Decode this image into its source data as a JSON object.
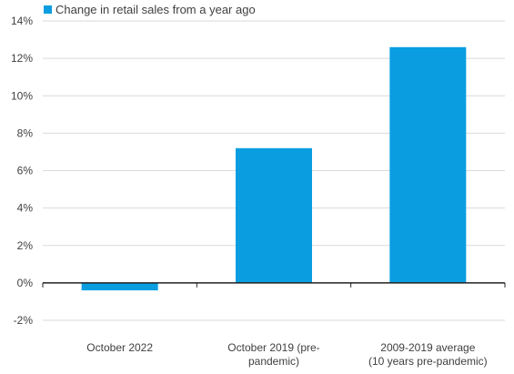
{
  "chart_data": {
    "type": "bar",
    "categories": [
      [
        "October 2022"
      ],
      [
        "October 2019 (pre-",
        "pandemic)"
      ],
      [
        "2009-2019 average",
        "(10 years pre-pandemic)"
      ]
    ],
    "series": [
      {
        "name": "Change in retail sales from a year ago",
        "values": [
          -0.4,
          7.2,
          12.6
        ]
      }
    ],
    "ylim": [
      -2,
      14
    ],
    "ytick_values": [
      -2,
      0,
      2,
      4,
      6,
      8,
      10,
      12,
      14
    ],
    "ytick_labels": [
      "-2%",
      "0%",
      "2%",
      "4%",
      "6%",
      "8%",
      "10%",
      "12%",
      "14%"
    ],
    "grid": true,
    "legend_position": "top-left",
    "bar_color": "#0a9ee0",
    "title": "",
    "xlabel": "",
    "ylabel": ""
  }
}
